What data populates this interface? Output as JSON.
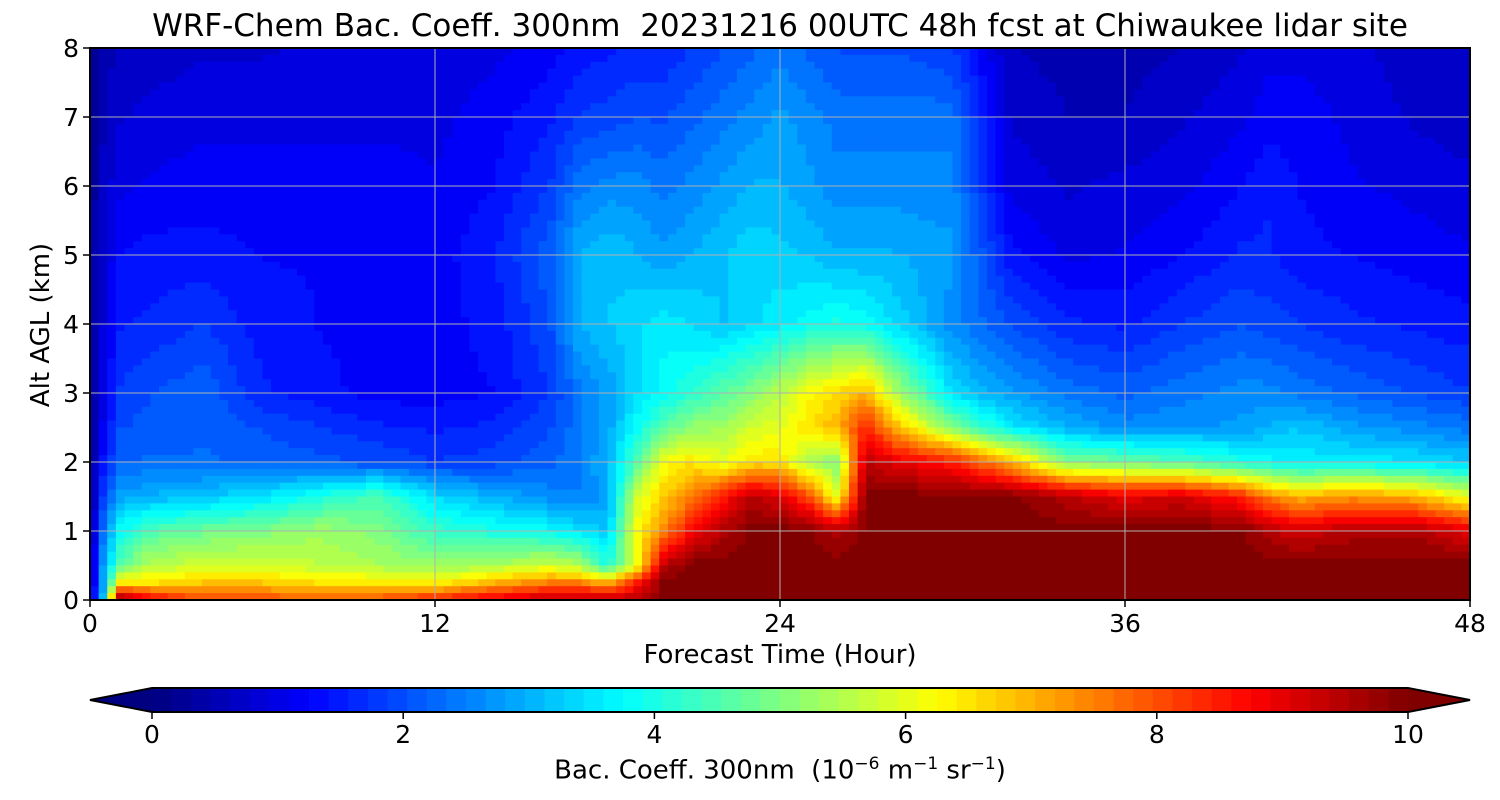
{
  "chart_data": {
    "type": "heatmap",
    "title": "WRF-Chem Bac. Coeff. 300nm  20231216 00UTC 48h fcst at Chiwaukee lidar site",
    "xlabel": "Forecast Time (Hour)",
    "ylabel": "Alt AGL (km)",
    "xlim": [
      0,
      48
    ],
    "ylim": [
      0,
      8
    ],
    "xticks": [
      "0",
      "12",
      "24",
      "36",
      "48"
    ],
    "yticks": [
      "0",
      "1",
      "2",
      "3",
      "4",
      "5",
      "6",
      "7",
      "8"
    ],
    "grid": true,
    "colormap": "jet",
    "colorbar": {
      "label_main": "Bac. Coeff. 300nm  (10",
      "label_exp1": "−6",
      "label_mid": " m",
      "label_exp2": "−1",
      "label_mid2": " sr",
      "label_exp3": "−1",
      "label_end": ")",
      "range": [
        0,
        10
      ],
      "ticks": [
        "0",
        "2",
        "4",
        "6",
        "8",
        "10"
      ],
      "extend": "both",
      "orientation": "horizontal"
    },
    "x": [
      0,
      0.5,
      1,
      2,
      4,
      6,
      8,
      10,
      12,
      14,
      16,
      17,
      18,
      19,
      20,
      21,
      22,
      23,
      24,
      25,
      26,
      27,
      28,
      30,
      32,
      34,
      36,
      38,
      40,
      41,
      42,
      44,
      46,
      48
    ],
    "profiles_top_km": [
      {
        "comment_free": "",
        "top_of_high_layer": [
          0,
          0.05,
          0.4,
          0.2,
          0.1,
          0.05,
          0.05,
          0.05,
          0.08,
          0.15,
          0.3,
          0.3,
          0.3,
          0.5,
          1.0,
          1.1,
          1.4,
          1.9,
          1.4,
          1.3,
          1.0,
          2.8,
          2.5,
          2.4,
          2.2,
          2.0,
          1.8,
          1.8,
          1.7,
          1.4,
          1.2,
          1.4,
          1.5,
          1.1
        ]
      }
    ],
    "values_by_level": {
      "levels_km": [
        0,
        0.25,
        0.5,
        1,
        1.5,
        2,
        2.5,
        3,
        4,
        5,
        6,
        7,
        8
      ],
      "grid": [
        [
          0.5,
          3.5,
          10,
          9.0,
          8.0,
          8.0,
          8.0,
          8.0,
          8.5,
          9.0,
          9.5,
          9.5,
          9.5,
          9.5,
          10,
          10,
          10,
          10,
          10,
          10,
          10,
          10,
          10,
          10,
          10,
          10,
          10,
          10,
          10,
          10,
          10,
          10,
          10,
          10
        ],
        [
          0.5,
          3.0,
          6.5,
          6.5,
          6.8,
          6.8,
          6.5,
          6.5,
          6.3,
          7.0,
          7.5,
          7.5,
          7.0,
          8.5,
          10,
          10,
          10,
          10,
          10,
          10,
          10,
          10,
          10,
          10,
          10,
          10,
          10,
          10,
          10,
          10,
          10,
          10,
          10,
          10
        ],
        [
          0.5,
          3.0,
          4.5,
          5.5,
          5.8,
          5.8,
          5.6,
          5.4,
          5.2,
          5.4,
          5.8,
          5.5,
          4.0,
          6.0,
          9.5,
          10,
          10,
          10,
          10,
          10,
          10,
          10,
          10,
          10,
          10,
          10,
          10,
          10,
          10,
          10,
          10,
          10,
          10,
          10
        ],
        [
          0.3,
          2.5,
          3.8,
          4.5,
          4.8,
          5.0,
          5.3,
          5.0,
          4.3,
          4.0,
          3.8,
          3.5,
          3.2,
          6.2,
          7.5,
          8.8,
          9.5,
          10,
          10,
          10,
          9.5,
          10,
          10,
          10,
          10,
          10,
          10,
          10,
          10,
          9.5,
          9.2,
          9.5,
          9.6,
          9.0
        ],
        [
          0.2,
          2.0,
          2.8,
          3.0,
          3.2,
          3.5,
          4.0,
          4.5,
          3.4,
          3.0,
          2.6,
          2.5,
          2.8,
          5.8,
          6.8,
          7.5,
          8.5,
          9.5,
          9.0,
          8.0,
          6.0,
          10,
          10,
          10,
          10,
          9.5,
          9.0,
          9.2,
          8.5,
          7.5,
          7.0,
          7.3,
          7.0,
          6.0
        ],
        [
          0.2,
          1.5,
          2.2,
          2.3,
          2.3,
          2.2,
          2.1,
          2.0,
          1.8,
          1.9,
          2.2,
          2.5,
          3.0,
          4.5,
          6.2,
          6.5,
          6.0,
          6.5,
          6.5,
          5.5,
          5.0,
          9.5,
          9.0,
          8.5,
          7.0,
          5.0,
          4.8,
          4.5,
          4.0,
          3.8,
          3.6,
          3.6,
          3.5,
          3.2
        ],
        [
          0.2,
          1.2,
          2.0,
          2.1,
          2.2,
          2.0,
          1.8,
          1.6,
          1.5,
          1.6,
          2.0,
          2.4,
          2.8,
          3.8,
          4.6,
          5.2,
          5.3,
          5.8,
          6.0,
          6.5,
          7.0,
          8.5,
          7.0,
          5.0,
          3.6,
          3.0,
          2.6,
          2.7,
          2.8,
          3.0,
          3.2,
          2.8,
          2.6,
          2.4
        ],
        [
          0.2,
          1.0,
          1.8,
          2.0,
          2.2,
          1.6,
          1.4,
          1.2,
          1.2,
          1.3,
          1.8,
          2.4,
          2.8,
          3.4,
          3.8,
          4.2,
          4.6,
          5.0,
          5.6,
          6.2,
          6.6,
          7.0,
          5.5,
          3.4,
          2.8,
          2.4,
          2.2,
          2.4,
          2.6,
          2.6,
          2.4,
          2.2,
          2.0,
          1.8
        ],
        [
          0.2,
          0.9,
          1.5,
          1.6,
          1.8,
          1.4,
          1.3,
          1.2,
          1.2,
          1.4,
          2.0,
          3.0,
          3.2,
          3.4,
          3.6,
          3.4,
          3.2,
          3.4,
          3.6,
          3.8,
          4.0,
          3.8,
          3.4,
          2.6,
          2.0,
          1.6,
          1.5,
          1.8,
          2.0,
          1.9,
          1.8,
          1.6,
          1.5,
          1.4
        ],
        [
          0.2,
          0.8,
          1.3,
          1.4,
          1.4,
          1.3,
          1.3,
          1.2,
          1.2,
          1.5,
          2.2,
          3.0,
          3.2,
          3.0,
          2.8,
          3.0,
          3.2,
          3.4,
          3.3,
          3.2,
          3.0,
          3.0,
          3.0,
          2.8,
          1.4,
          1.0,
          1.1,
          1.3,
          1.6,
          1.6,
          1.4,
          1.3,
          1.2,
          1.1
        ],
        [
          0.2,
          0.7,
          1.0,
          1.1,
          1.2,
          1.2,
          1.2,
          1.2,
          1.1,
          1.3,
          1.8,
          2.4,
          2.6,
          2.6,
          2.4,
          2.6,
          2.8,
          3.0,
          3.0,
          2.8,
          2.6,
          2.6,
          2.6,
          2.6,
          1.0,
          0.8,
          0.9,
          1.0,
          1.3,
          1.5,
          1.3,
          1.1,
          1.0,
          0.9
        ],
        [
          0.2,
          0.6,
          0.8,
          0.9,
          1.0,
          1.0,
          1.0,
          1.0,
          1.0,
          1.2,
          1.5,
          1.8,
          1.9,
          2.0,
          2.0,
          2.2,
          2.4,
          2.6,
          2.8,
          2.6,
          2.4,
          2.4,
          2.4,
          2.4,
          0.8,
          0.6,
          0.6,
          0.8,
          1.0,
          1.2,
          1.2,
          1.0,
          0.8,
          0.7
        ],
        [
          0.2,
          0.5,
          0.6,
          0.7,
          0.8,
          0.8,
          0.9,
          0.9,
          0.9,
          1.0,
          1.2,
          1.4,
          1.5,
          1.6,
          1.6,
          1.8,
          2.0,
          2.2,
          2.4,
          2.2,
          2.0,
          2.0,
          2.0,
          1.8,
          0.6,
          0.5,
          0.5,
          0.6,
          0.8,
          1.0,
          1.0,
          0.9,
          0.7,
          0.6
        ]
      ]
    }
  }
}
